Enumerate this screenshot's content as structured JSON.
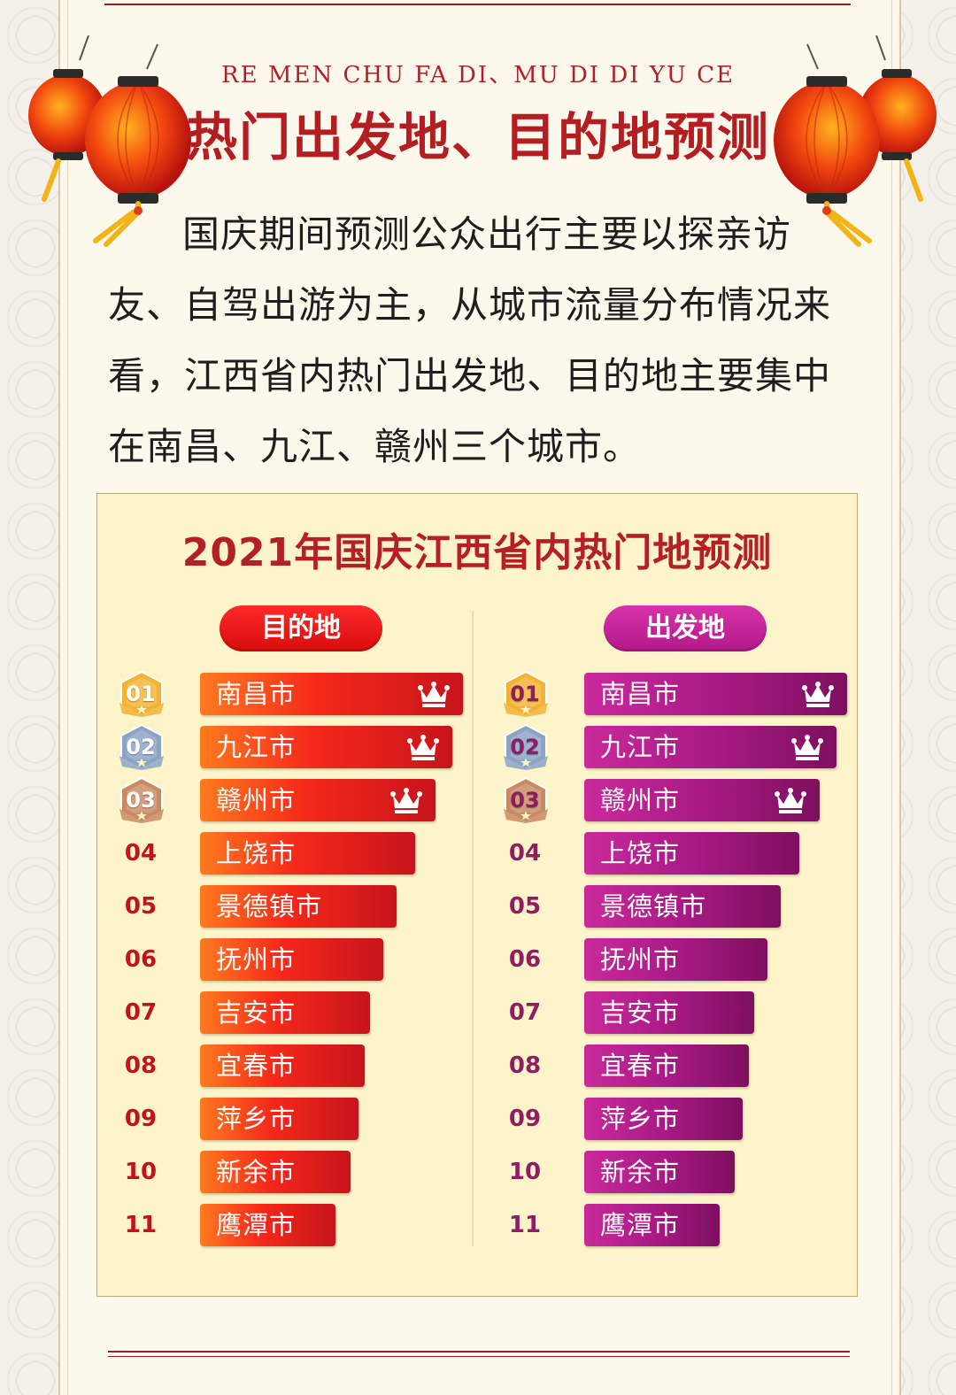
{
  "header": {
    "subtitle_en": "RE MEN CHU FA DI、MU DI DI YU CE",
    "title": "热门出发地、目的地预测"
  },
  "intro": "国庆期间预测公众出行主要以探亲访友、自驾出游为主，从城市流量分布情况来看，江西省内热门出发地、目的地主要集中在南昌、九江、赣州三个城市。",
  "colors": {
    "destination_bar": "#e8231b",
    "origin_bar": "#a81a83",
    "title_red": "#b41d22",
    "gold_badge": "#f2b233",
    "silver_badge": "#8ca3c4",
    "bronze_badge": "#c98a62"
  },
  "chart_data": [
    {
      "type": "bar",
      "title": "2021年国庆江西省内热门地预测",
      "group_label": "目的地",
      "ranks": [
        "01",
        "02",
        "03",
        "04",
        "05",
        "06",
        "07",
        "08",
        "09",
        "10",
        "11"
      ],
      "categories": [
        "南昌市",
        "九江市",
        "赣州市",
        "上饶市",
        "景德镇市",
        "抚州市",
        "吉安市",
        "宜春市",
        "萍乡市",
        "新余市",
        "鹰潭市"
      ],
      "values": [
        297,
        285,
        266,
        243,
        222,
        207,
        192,
        186,
        179,
        170,
        153
      ],
      "crowned_top": 3
    },
    {
      "type": "bar",
      "title": "2021年国庆江西省内热门地预测",
      "group_label": "出发地",
      "ranks": [
        "01",
        "02",
        "03",
        "04",
        "05",
        "06",
        "07",
        "08",
        "09",
        "10",
        "11"
      ],
      "categories": [
        "南昌市",
        "九江市",
        "赣州市",
        "上饶市",
        "景德镇市",
        "抚州市",
        "吉安市",
        "宜春市",
        "萍乡市",
        "新余市",
        "鹰潭市"
      ],
      "values": [
        297,
        285,
        266,
        243,
        222,
        207,
        192,
        186,
        179,
        170,
        153
      ],
      "crowned_top": 3
    }
  ]
}
